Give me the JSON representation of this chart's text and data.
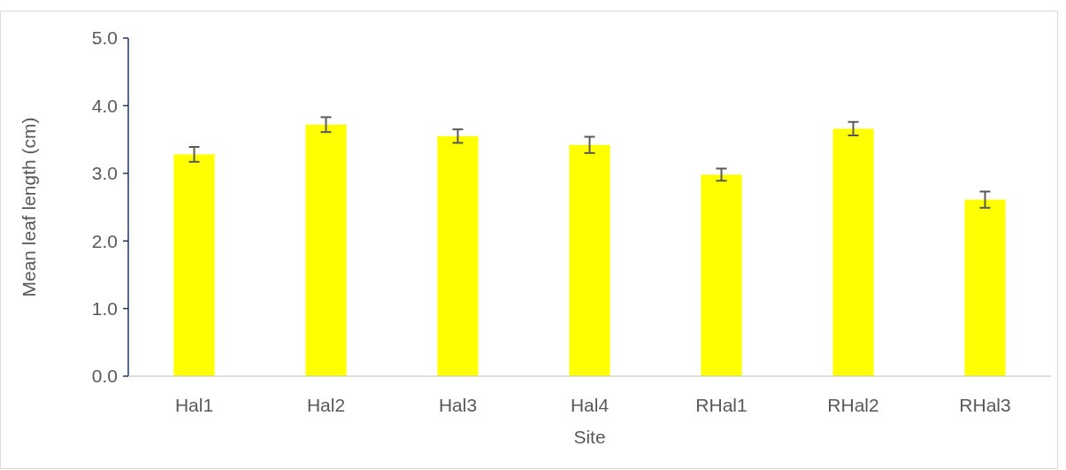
{
  "chart_data": {
    "type": "bar",
    "xlabel": "Site",
    "ylabel": "Mean leaf length (cm)",
    "categories": [
      "Hal1",
      "Hal2",
      "Hal3",
      "Hal4",
      "RHal1",
      "RHal2",
      "RHal3"
    ],
    "values": [
      3.28,
      3.72,
      3.55,
      3.42,
      2.98,
      3.66,
      2.61
    ],
    "errors": [
      0.11,
      0.11,
      0.1,
      0.12,
      0.09,
      0.1,
      0.12
    ],
    "color": "#ffff00",
    "ylim": [
      0,
      5
    ],
    "yticks": [
      {
        "value": 0,
        "label": "0.0"
      },
      {
        "value": 1,
        "label": "1.0"
      },
      {
        "value": 2,
        "label": "2.0"
      },
      {
        "value": 3,
        "label": "3.0"
      },
      {
        "value": 4,
        "label": "4.0"
      },
      {
        "value": 5,
        "label": "5.0"
      }
    ]
  }
}
